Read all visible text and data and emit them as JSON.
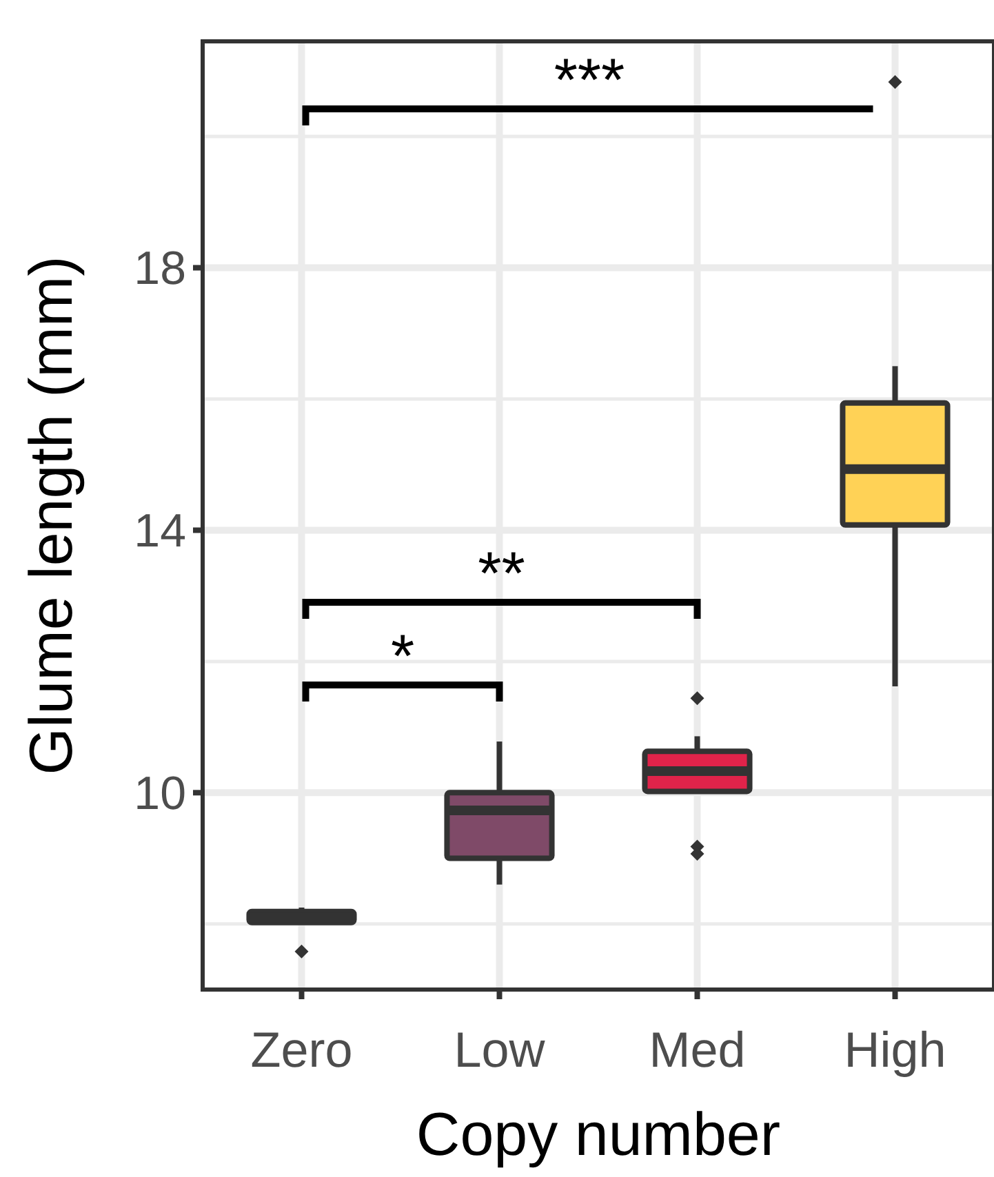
{
  "chart_data": {
    "type": "box",
    "xlabel": "Copy number",
    "ylabel": "Glume length (mm)",
    "categories": [
      "Zero",
      "Low",
      "Med",
      "High"
    ],
    "colors": [
      "#333333",
      "#7f4a68",
      "#e0234a",
      "#ffd256"
    ],
    "boxes": [
      {
        "low": 8.0,
        "q1": 8.02,
        "median": 8.1,
        "q3": 8.19,
        "high": 8.25,
        "outliers": [
          7.58
        ]
      },
      {
        "low": 8.6,
        "q1": 9.0,
        "median": 9.73,
        "q3": 10.0,
        "high": 10.78
      },
      {
        "low": 10.02,
        "q1": 10.02,
        "median": 10.33,
        "q3": 10.63,
        "high": 10.86,
        "outliers": [
          11.44,
          9.18,
          9.07
        ]
      },
      {
        "low": 11.62,
        "q1": 14.08,
        "median": 14.93,
        "q3": 15.94,
        "high": 16.5,
        "outliers": [
          20.83
        ]
      }
    ],
    "ylim": [
      7,
      21.45
    ],
    "yticks": [
      10,
      14,
      18
    ],
    "grid": true,
    "annotations": [
      "*",
      "**",
      "***"
    ]
  }
}
